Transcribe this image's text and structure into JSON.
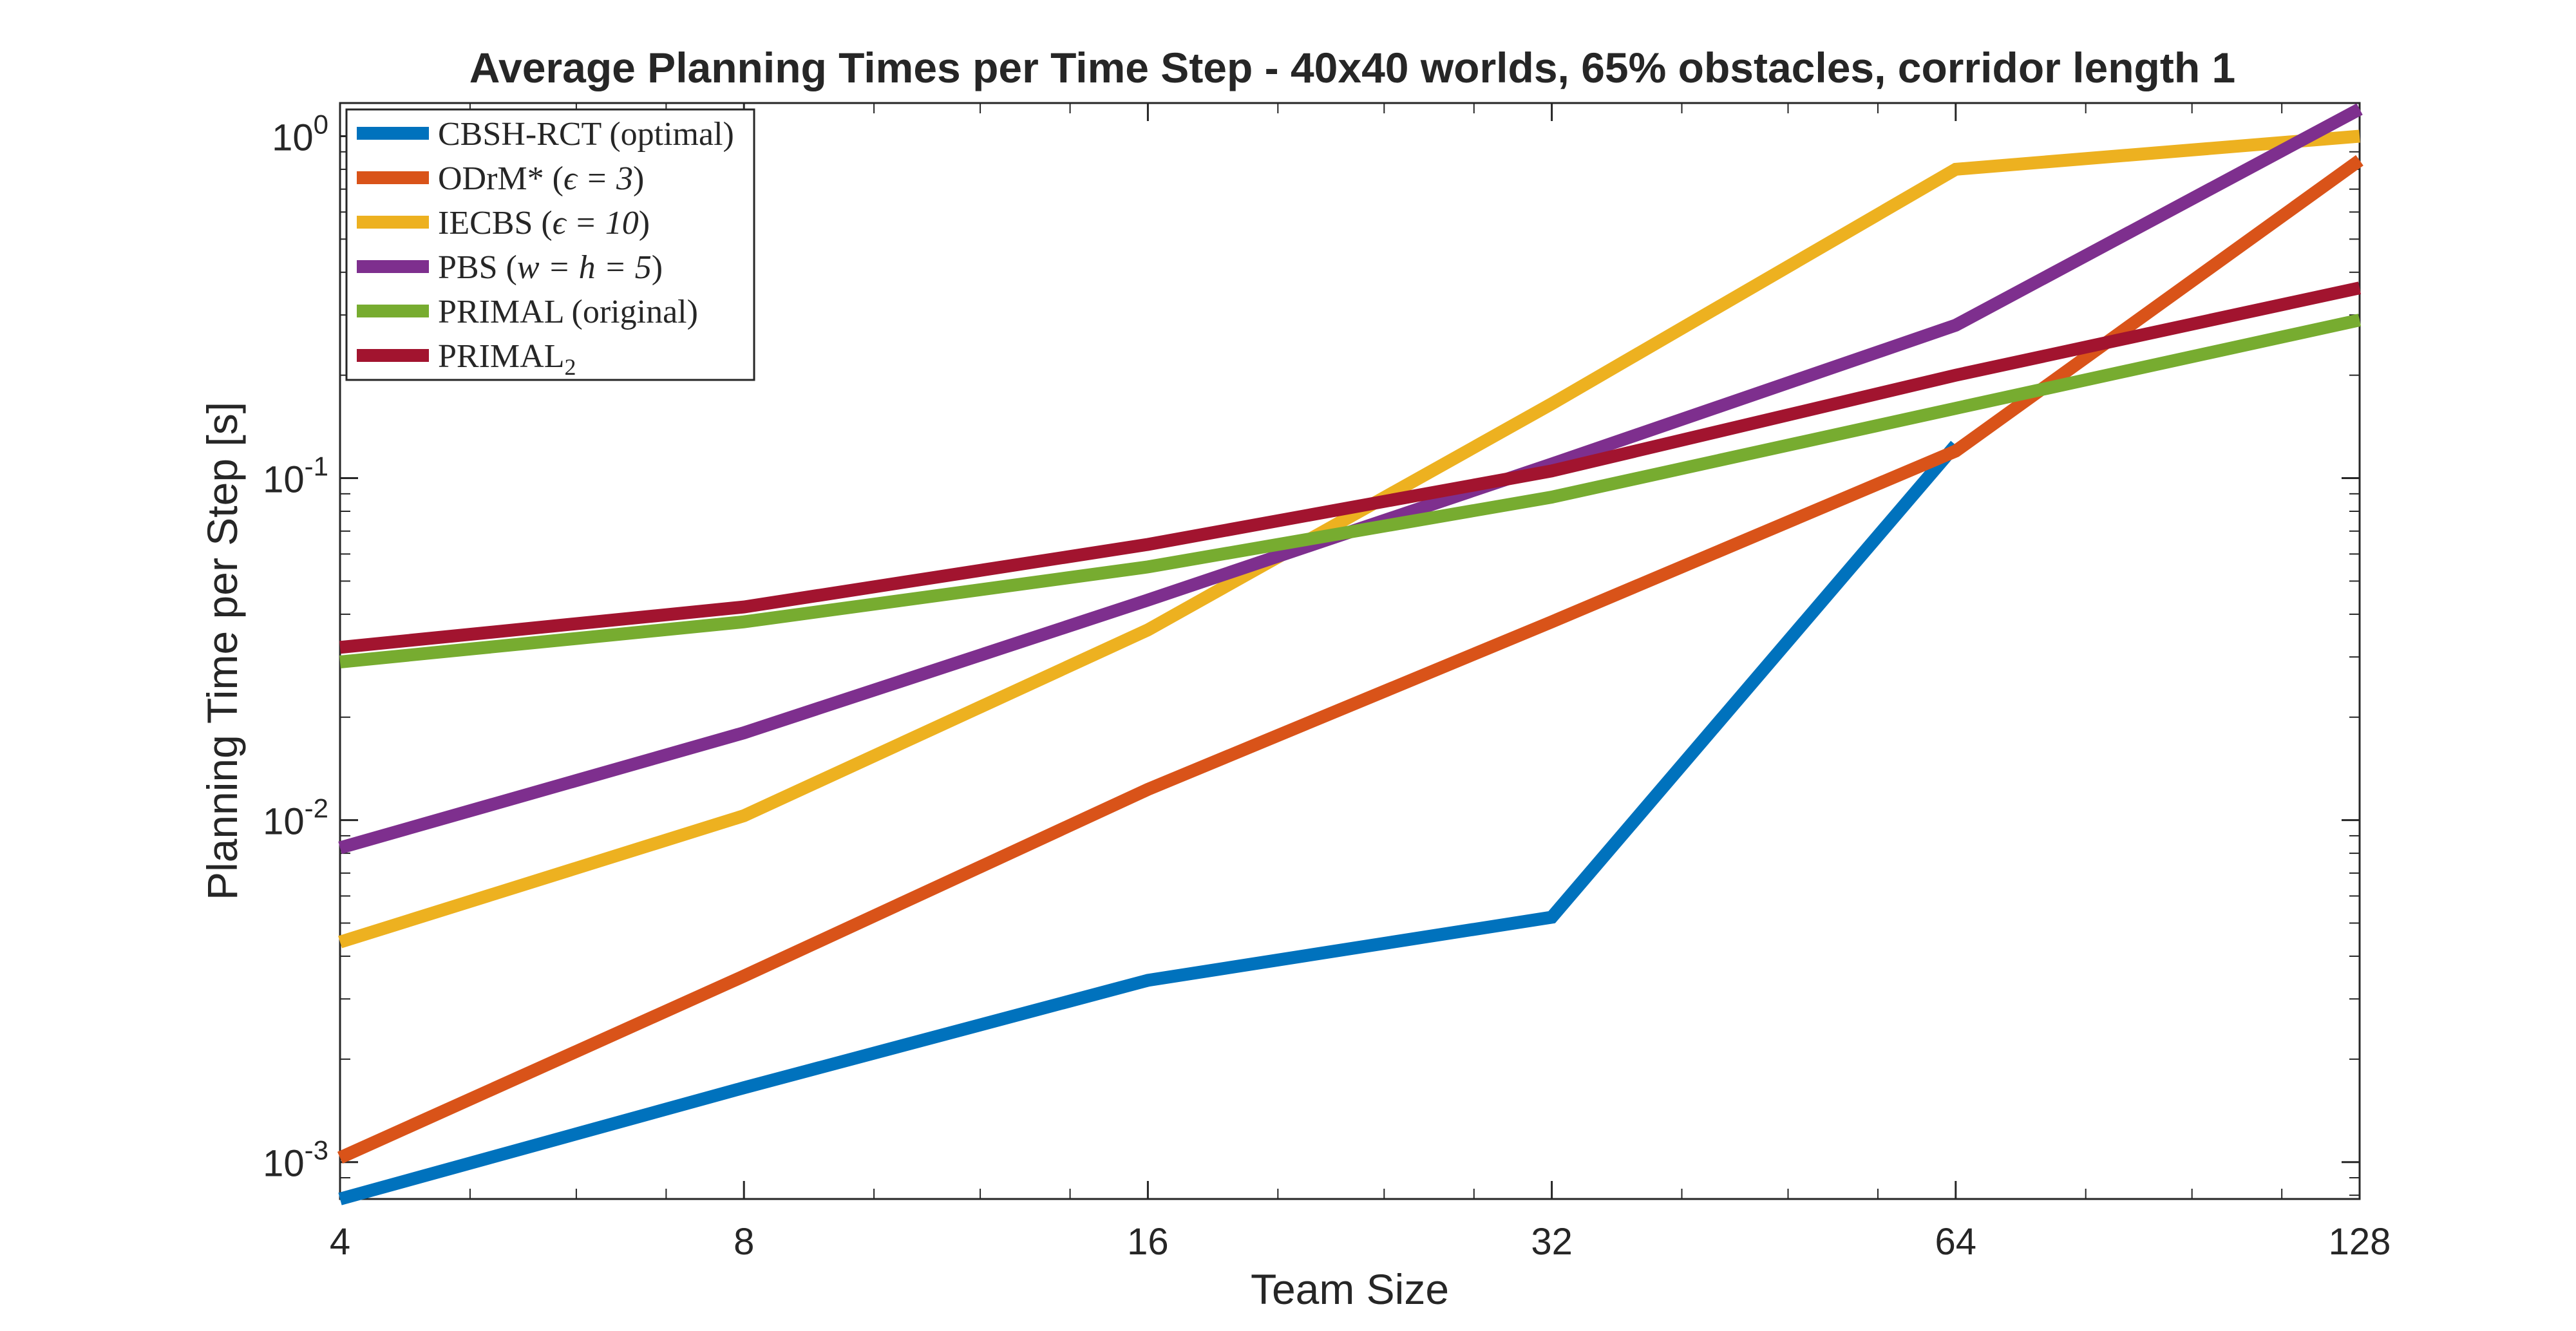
{
  "chart_data": {
    "type": "line",
    "title": "Average Planning Times per Time Step - 40x40 worlds, 65% obstacles, corridor length 1",
    "xlabel": "Team Size",
    "ylabel": "Planning Time per Step [s]",
    "x_scale": "log2",
    "y_scale": "log10",
    "xlim": [
      4,
      128
    ],
    "ylim": [
      0.00078,
      1.25
    ],
    "grid": false,
    "legend_position": "top-left",
    "x": [
      4,
      8,
      16,
      32,
      64,
      128
    ],
    "x_tick_labels": [
      "4",
      "8",
      "16",
      "32",
      "64",
      "128"
    ],
    "y_ticks": [
      {
        "value": 1,
        "base": "10",
        "exp": "0"
      },
      {
        "value": 0.1,
        "base": "10",
        "exp": "-1"
      },
      {
        "value": 0.01,
        "base": "10",
        "exp": "-2"
      },
      {
        "value": 0.001,
        "base": "10",
        "exp": "-3"
      }
    ],
    "series": [
      {
        "name": "CBSH-RCT (optimal)",
        "color": "#0072BD",
        "values": [
          0.00078,
          0.00165,
          0.0034,
          0.0052,
          0.125,
          null
        ]
      },
      {
        "name": "ODrM* (ϵ = 3)",
        "color": "#D95319",
        "values": [
          0.00103,
          0.0035,
          0.0123,
          0.038,
          0.12,
          0.85
        ]
      },
      {
        "name": "IECBS (ϵ = 10)",
        "color": "#EDB120",
        "values": [
          0.0044,
          0.0103,
          0.036,
          0.165,
          0.8,
          1.0
        ]
      },
      {
        "name": "PBS (w = h = 5)",
        "color": "#7E2F8E",
        "values": [
          0.0083,
          0.018,
          0.044,
          0.11,
          0.28,
          1.2
        ]
      },
      {
        "name": "PRIMAL (original)",
        "color": "#77AC30",
        "values": [
          0.029,
          0.038,
          0.055,
          0.088,
          0.16,
          0.29
        ]
      },
      {
        "name": "PRIMAL2",
        "color": "#A2142F",
        "values": [
          0.032,
          0.042,
          0.064,
          0.105,
          0.2,
          0.36
        ]
      }
    ],
    "legend_entries": [
      {
        "main": "CBSH-RCT (optimal)"
      },
      {
        "main": "ODrM* (",
        "math": "ϵ = 3",
        "tail": ")"
      },
      {
        "main": "IECBS (",
        "math": "ϵ = 10",
        "tail": ")"
      },
      {
        "main": "PBS (",
        "math": "w = h = 5",
        "tail": ")"
      },
      {
        "main": "PRIMAL (original)"
      },
      {
        "main": "PRIMAL",
        "sub": "2"
      }
    ]
  }
}
